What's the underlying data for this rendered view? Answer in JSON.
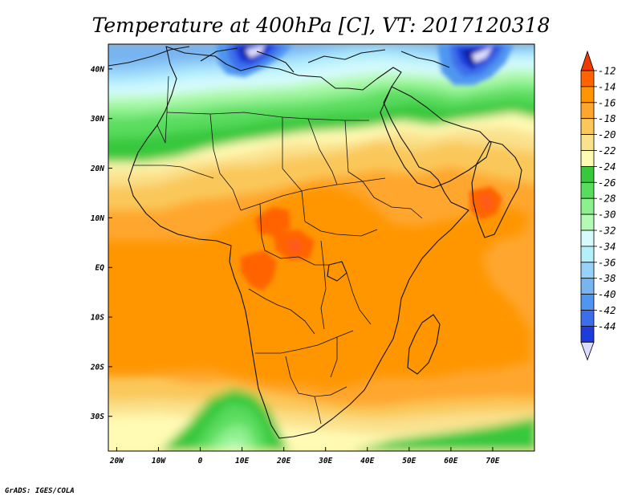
{
  "title": "Temperature at 400hPa [C], VT: 2017120318",
  "credit": "GrADS: IGES/COLA",
  "variable": "Temperature",
  "level": "400hPa",
  "units": "C",
  "valid_time": "2017120318",
  "map": {
    "lon_range": [
      -22,
      80
    ],
    "lat_range": [
      -37,
      45
    ],
    "lon_ticks": [
      {
        "lon": -20,
        "label": "20W"
      },
      {
        "lon": -10,
        "label": "10W"
      },
      {
        "lon": 0,
        "label": "0"
      },
      {
        "lon": 10,
        "label": "10E"
      },
      {
        "lon": 20,
        "label": "20E"
      },
      {
        "lon": 30,
        "label": "30E"
      },
      {
        "lon": 40,
        "label": "40E"
      },
      {
        "lon": 50,
        "label": "50E"
      },
      {
        "lon": 60,
        "label": "60E"
      },
      {
        "lon": 70,
        "label": "70E"
      }
    ],
    "lat_ticks": [
      {
        "lat": 40,
        "label": "40N"
      },
      {
        "lat": 30,
        "label": "30N"
      },
      {
        "lat": 20,
        "label": "20N"
      },
      {
        "lat": 10,
        "label": "10N"
      },
      {
        "lat": 0,
        "label": "EQ"
      },
      {
        "lat": -10,
        "label": "10S"
      },
      {
        "lat": -20,
        "label": "20S"
      },
      {
        "lat": -30,
        "label": "30S"
      }
    ]
  },
  "colorbar": {
    "levels": [
      {
        "label": "-12",
        "value": -12,
        "color": "#ff6400"
      },
      {
        "label": "-14",
        "value": -14,
        "color": "#ff9600"
      },
      {
        "label": "-16",
        "value": -16,
        "color": "#ffa62e"
      },
      {
        "label": "-18",
        "value": -18,
        "color": "#fac85a"
      },
      {
        "label": "-20",
        "value": -20,
        "color": "#fae18c"
      },
      {
        "label": "-22",
        "value": -22,
        "color": "#fffab4"
      },
      {
        "label": "-24",
        "value": -24,
        "color": "#37c83c"
      },
      {
        "label": "-26",
        "value": -26,
        "color": "#5adc5f"
      },
      {
        "label": "-28",
        "value": -28,
        "color": "#8cf08c"
      },
      {
        "label": "-30",
        "value": -30,
        "color": "#b4fab4"
      },
      {
        "label": "-32",
        "value": -32,
        "color": "#d7faff"
      },
      {
        "label": "-34",
        "value": -34,
        "color": "#b4f0fa"
      },
      {
        "label": "-36",
        "value": -36,
        "color": "#96d2fa"
      },
      {
        "label": "-38",
        "value": -38,
        "color": "#78b4f0"
      },
      {
        "label": "-40",
        "value": -40,
        "color": "#5096f0"
      },
      {
        "label": "-42",
        "value": -42,
        "color": "#3c6eeb"
      },
      {
        "label": "-44",
        "value": -44,
        "color": "#1e3cdc"
      }
    ],
    "top_arrow_color": "#ee3a00",
    "bottom_arrow_color": "#dcdcff",
    "extra_fill_colors": {
      "below_44": "#0f1e96",
      "low_extreme": "#dcdcff",
      "warm_max": "#ff5a1e"
    }
  }
}
